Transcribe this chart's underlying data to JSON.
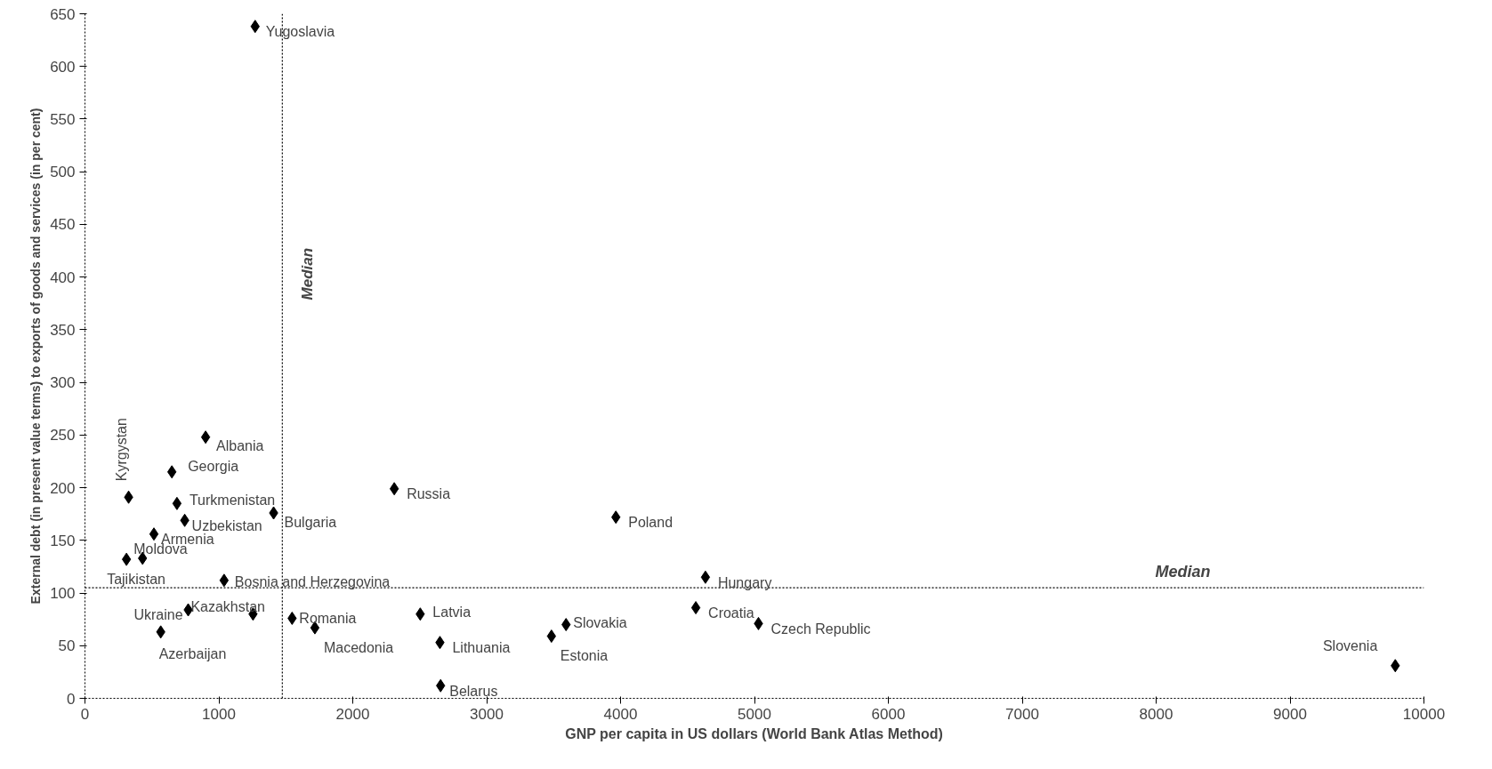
{
  "chart_data": {
    "type": "scatter",
    "xlabel": "GNP per capita in US dollars (World Bank Atlas Method)",
    "ylabel": "External debt (in present value terms) to exports of goods and services (in per cent)",
    "xlim": [
      0,
      10000
    ],
    "xticks": [
      0,
      1000,
      2000,
      3000,
      4000,
      5000,
      6000,
      7000,
      8000,
      9000,
      10000
    ],
    "ylim": [
      0,
      650
    ],
    "yticks": [
      0,
      50,
      100,
      150,
      200,
      250,
      300,
      350,
      400,
      450,
      500,
      550,
      600,
      650
    ],
    "grid": false,
    "marker": "diamond",
    "series": [
      {
        "color": "#000000",
        "x": [
          1271,
          901,
          649,
          326,
          687,
          745,
          515,
          430,
          310,
          1039,
          1409,
          2310,
          1255,
          771,
          566,
          1547,
          1717,
          2504,
          2651,
          2656,
          3484,
          3593,
          3965,
          4634,
          4562,
          5030,
          9786
        ],
        "values": [
          638,
          248,
          215,
          191,
          185,
          169,
          156,
          133,
          132,
          112,
          176,
          199,
          80,
          84,
          63,
          76,
          67,
          80,
          53,
          12,
          59,
          70,
          172,
          115,
          86,
          71,
          31
        ]
      }
    ],
    "annotations": [
      {
        "text": "Yugoslavia",
        "x": 1271,
        "y": 638
      },
      {
        "text": "Albania",
        "x": 901,
        "y": 248
      },
      {
        "text": "Georgia",
        "x": 649,
        "y": 215
      },
      {
        "text": "Kyrgystan",
        "x": 326,
        "y": 191
      },
      {
        "text": "Turkmenistan",
        "x": 687,
        "y": 185
      },
      {
        "text": "Uzbekistan",
        "x": 745,
        "y": 169
      },
      {
        "text": "Armenia",
        "x": 515,
        "y": 156
      },
      {
        "text": "Moldova",
        "x": 430,
        "y": 133
      },
      {
        "text": "Tajikistan",
        "x": 310,
        "y": 132
      },
      {
        "text": "Bosnia and Herzegovina",
        "x": 1039,
        "y": 112
      },
      {
        "text": "Bulgaria",
        "x": 1409,
        "y": 176
      },
      {
        "text": "Russia",
        "x": 2310,
        "y": 199
      },
      {
        "text": "Kazakhstan",
        "x": 1255,
        "y": 80
      },
      {
        "text": "Ukraine",
        "x": 771,
        "y": 84
      },
      {
        "text": "Azerbaijan",
        "x": 566,
        "y": 63
      },
      {
        "text": "Romania",
        "x": 1547,
        "y": 76
      },
      {
        "text": "Macedonia",
        "x": 1717,
        "y": 67
      },
      {
        "text": "Latvia",
        "x": 2504,
        "y": 80
      },
      {
        "text": "Lithuania",
        "x": 2651,
        "y": 53
      },
      {
        "text": "Belarus",
        "x": 2656,
        "y": 12
      },
      {
        "text": "Estonia",
        "x": 3484,
        "y": 59
      },
      {
        "text": "Slovakia",
        "x": 3593,
        "y": 70
      },
      {
        "text": "Poland",
        "x": 3965,
        "y": 172
      },
      {
        "text": "Hungary",
        "x": 4634,
        "y": 115
      },
      {
        "text": "Croatia",
        "x": 4562,
        "y": 86
      },
      {
        "text": "Czech Republic",
        "x": 5030,
        "y": 71
      },
      {
        "text": "Slovenia",
        "x": 9786,
        "y": 31
      }
    ],
    "ref_lines": [
      {
        "axis": "x",
        "value": 1474,
        "label": "Median",
        "color": "#000000",
        "line_style": "dotted"
      },
      {
        "axis": "y",
        "value": 105,
        "label": "Median",
        "color": "#000000",
        "line_style": "dotted"
      }
    ]
  }
}
